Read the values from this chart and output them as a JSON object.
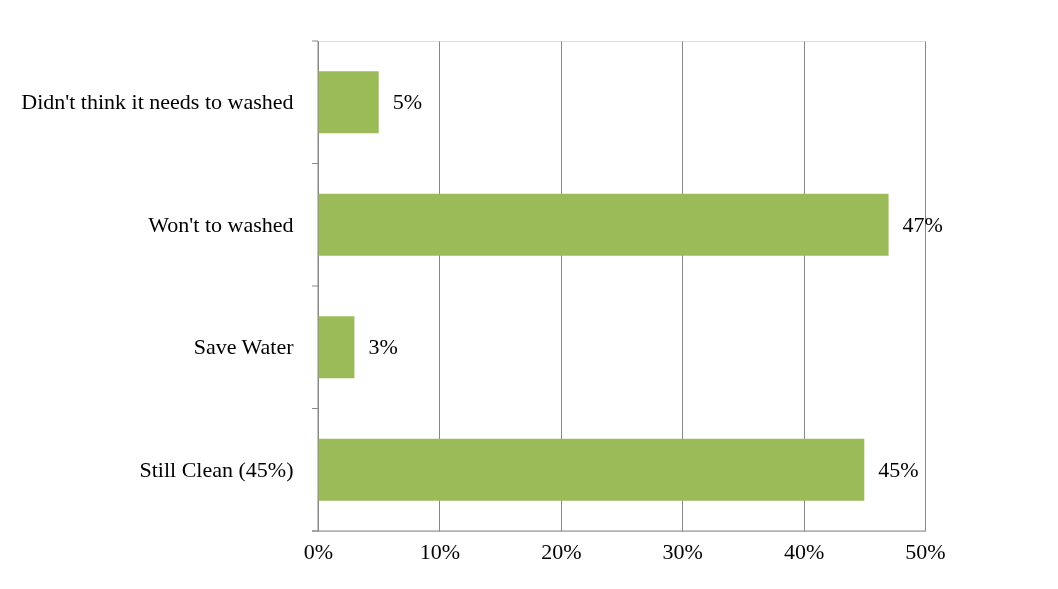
{
  "chart_data": {
    "type": "bar",
    "orientation": "horizontal",
    "categories": [
      "Didn't think it needs to washed",
      "Won't to washed",
      "Save Water",
      "Still Clean (45%)"
    ],
    "values": [
      5,
      47,
      3,
      45
    ],
    "value_labels": [
      "5%",
      "47%",
      "3%",
      "45%"
    ],
    "color": "#9bbb59",
    "xlim": [
      0,
      50
    ],
    "xticks": [
      {
        "value": 0,
        "label": "0%"
      },
      {
        "value": 10,
        "label": "10%"
      },
      {
        "value": 20,
        "label": "20%"
      },
      {
        "value": 30,
        "label": "30%"
      },
      {
        "value": 40,
        "label": "40%"
      },
      {
        "value": 50,
        "label": "50%"
      }
    ],
    "grid": "x"
  }
}
